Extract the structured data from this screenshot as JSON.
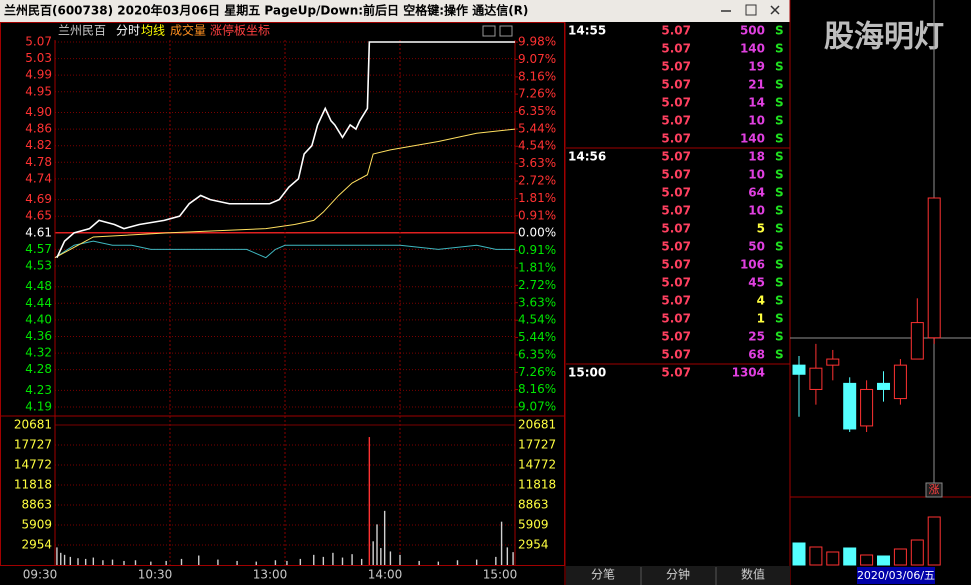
{
  "window": {
    "title": "兰州民百(600738)  2020年03月06日 星期五 PageUp/Down:前后日 空格键:操作 通达信(R)",
    "watermark": "股海明灯"
  },
  "intraday": {
    "header": [
      "兰州民百",
      "分时",
      "均线",
      "成交量",
      "涨停板坐标"
    ],
    "prev_close": 4.61,
    "xlim": [
      0,
      240
    ],
    "xticks": [
      {
        "value": 0,
        "label": "09:30"
      },
      {
        "value": 60,
        "label": "10:30"
      },
      {
        "value": 120,
        "label": "13:00"
      },
      {
        "value": 180,
        "label": "14:00"
      },
      {
        "value": 240,
        "label": "15:00"
      }
    ],
    "ylim": [
      4.19,
      5.07
    ],
    "yticks": [
      5.07,
      5.03,
      4.99,
      4.95,
      {
        "value": 4.9,
        "label": "4.90"
      },
      4.86,
      4.82,
      4.78,
      4.74,
      4.69,
      4.65,
      4.61,
      4.57,
      4.53,
      4.48,
      4.44,
      {
        "value": 4.4,
        "label": "4.40"
      },
      4.36,
      4.32,
      4.28,
      4.23,
      4.19
    ],
    "y2lim": [
      -9.07,
      9.98
    ],
    "y2ticks": [
      {
        "value": 9.98,
        "label": "9.98%"
      },
      {
        "value": 9.07,
        "label": "9.07%"
      },
      {
        "value": 8.16,
        "label": "8.16%"
      },
      {
        "value": 7.26,
        "label": "7.26%"
      },
      {
        "value": 6.35,
        "label": "6.35%"
      },
      {
        "value": 5.44,
        "label": "5.44%"
      },
      {
        "value": 4.54,
        "label": "4.54%"
      },
      {
        "value": 3.63,
        "label": "3.63%"
      },
      {
        "value": 2.72,
        "label": "2.72%"
      },
      {
        "value": 1.81,
        "label": "1.81%"
      },
      {
        "value": 0.91,
        "label": "0.91%"
      },
      {
        "value": 0,
        "label": "0.00%"
      },
      {
        "value": -0.91,
        "label": "0.91%"
      },
      {
        "value": -1.81,
        "label": "1.81%"
      },
      {
        "value": -2.72,
        "label": "2.72%"
      },
      {
        "value": -3.63,
        "label": "3.63%"
      },
      {
        "value": -4.54,
        "label": "4.54%"
      },
      {
        "value": -5.44,
        "label": "5.44%"
      },
      {
        "value": -6.35,
        "label": "6.35%"
      },
      {
        "value": -7.26,
        "label": "7.26%"
      },
      {
        "value": -8.16,
        "label": "8.16%"
      },
      {
        "value": -9.07,
        "label": "9.07%"
      }
    ],
    "price": {
      "x": [
        1,
        5,
        10,
        18,
        23,
        31,
        36,
        44,
        57,
        65,
        70,
        76,
        81,
        91,
        102,
        112,
        117,
        122,
        127,
        130,
        134,
        137,
        141,
        144,
        146,
        150,
        154,
        157,
        159,
        163,
        164,
        240
      ],
      "values": [
        4.55,
        4.59,
        4.61,
        4.62,
        4.64,
        4.63,
        4.62,
        4.63,
        4.64,
        4.65,
        4.68,
        4.7,
        4.69,
        4.68,
        4.68,
        4.68,
        4.69,
        4.72,
        4.74,
        4.8,
        4.82,
        4.87,
        4.91,
        4.88,
        4.87,
        4.84,
        4.87,
        4.86,
        4.88,
        4.91,
        5.07,
        5.07
      ]
    },
    "average": {
      "x": [
        0,
        20,
        60,
        110,
        125,
        135,
        140,
        148,
        155,
        163,
        166,
        175,
        200,
        220,
        240
      ],
      "values": [
        4.55,
        4.6,
        4.61,
        4.62,
        4.63,
        4.64,
        4.66,
        4.7,
        4.73,
        4.75,
        4.8,
        4.81,
        4.83,
        4.85,
        4.86
      ]
    },
    "indicator": {
      "x": [
        0,
        10,
        20,
        30,
        40,
        50,
        70,
        90,
        100,
        105,
        110,
        115,
        120,
        135,
        150,
        165,
        180,
        200,
        220,
        230,
        240
      ],
      "values": [
        4.55,
        4.58,
        4.59,
        4.58,
        4.58,
        4.57,
        4.57,
        4.57,
        4.57,
        4.56,
        4.55,
        4.57,
        4.58,
        4.58,
        4.58,
        4.58,
        4.58,
        4.57,
        4.58,
        4.57,
        4.57
      ]
    },
    "volume": {
      "ylim": [
        0,
        20681
      ],
      "yticks": [
        20681,
        17727,
        14772,
        11818,
        8863,
        5909,
        2954
      ],
      "x": [
        1,
        3,
        5,
        8,
        12,
        16,
        20,
        25,
        30,
        36,
        42,
        50,
        58,
        66,
        75,
        85,
        95,
        105,
        115,
        121,
        128,
        135,
        140,
        145,
        150,
        155,
        160,
        164,
        166,
        168,
        170,
        172,
        175,
        180,
        190,
        200,
        210,
        220,
        230,
        233,
        236,
        239
      ],
      "values": [
        2600,
        1800,
        1500,
        1200,
        1000,
        900,
        1100,
        700,
        800,
        600,
        700,
        500,
        600,
        900,
        1400,
        800,
        600,
        500,
        700,
        600,
        900,
        1500,
        1200,
        1800,
        1100,
        1600,
        900,
        18900,
        3500,
        6000,
        2500,
        8000,
        2000,
        1500,
        600,
        500,
        700,
        800,
        1200,
        6400,
        2600,
        1900
      ]
    }
  },
  "ticks": {
    "rows": [
      {
        "time": "14:55",
        "price": 5.07,
        "volume": 500,
        "side": "S",
        "color": "#e040e0"
      },
      {
        "time": null,
        "price": 5.07,
        "volume": 140,
        "side": "S",
        "color": "#e040e0"
      },
      {
        "time": null,
        "price": 5.07,
        "volume": 19,
        "side": "S",
        "color": "#e040e0"
      },
      {
        "time": null,
        "price": 5.07,
        "volume": 21,
        "side": "S",
        "color": "#e040e0"
      },
      {
        "time": null,
        "price": 5.07,
        "volume": 14,
        "side": "S",
        "color": "#e040e0"
      },
      {
        "time": null,
        "price": 5.07,
        "volume": 10,
        "side": "S",
        "color": "#e040e0"
      },
      {
        "time": null,
        "price": 5.07,
        "volume": 140,
        "side": "S",
        "color": "#e040e0"
      },
      {
        "time": "14:56",
        "price": 5.07,
        "volume": 18,
        "side": "S",
        "color": "#e040e0"
      },
      {
        "time": null,
        "price": 5.07,
        "volume": 10,
        "side": "S",
        "color": "#e040e0"
      },
      {
        "time": null,
        "price": 5.07,
        "volume": 64,
        "side": "S",
        "color": "#e040e0"
      },
      {
        "time": null,
        "price": 5.07,
        "volume": 10,
        "side": "S",
        "color": "#e040e0"
      },
      {
        "time": null,
        "price": 5.07,
        "volume": 5,
        "side": "S",
        "color": "#ffff40"
      },
      {
        "time": null,
        "price": 5.07,
        "volume": 50,
        "side": "S",
        "color": "#e040e0"
      },
      {
        "time": null,
        "price": 5.07,
        "volume": 106,
        "side": "S",
        "color": "#e040e0"
      },
      {
        "time": null,
        "price": 5.07,
        "volume": 45,
        "side": "S",
        "color": "#e040e0"
      },
      {
        "time": null,
        "price": 5.07,
        "volume": 4,
        "side": "S",
        "color": "#ffff40"
      },
      {
        "time": null,
        "price": 5.07,
        "volume": 1,
        "side": "S",
        "color": "#ffff40"
      },
      {
        "time": null,
        "price": 5.07,
        "volume": 25,
        "side": "S",
        "color": "#e040e0"
      },
      {
        "time": null,
        "price": 5.07,
        "volume": 68,
        "side": "S",
        "color": "#e040e0"
      },
      {
        "time": "15:00",
        "price": 5.07,
        "volume": 1304,
        "side": null,
        "color": "#e040e0"
      }
    ],
    "tabs": [
      "分笔",
      "分钟",
      "数值"
    ]
  },
  "daily": {
    "candles": [
      {
        "open": 4.52,
        "close": 4.49,
        "high": 4.55,
        "low": 4.35
      },
      {
        "open": 4.44,
        "close": 4.51,
        "high": 4.59,
        "low": 4.39
      },
      {
        "open": 4.52,
        "close": 4.54,
        "high": 4.57,
        "low": 4.47
      },
      {
        "open": 4.46,
        "close": 4.31,
        "high": 4.48,
        "low": 4.3
      },
      {
        "open": 4.32,
        "close": 4.44,
        "high": 4.47,
        "low": 4.3
      },
      {
        "open": 4.46,
        "close": 4.44,
        "high": 4.5,
        "low": 4.4
      },
      {
        "open": 4.41,
        "close": 4.52,
        "high": 4.54,
        "low": 4.39
      },
      {
        "open": 4.54,
        "close": 4.66,
        "high": 4.74,
        "low": 4.54
      },
      {
        "open": 4.61,
        "close": 5.07,
        "high": 5.07,
        "low": 4.59
      }
    ],
    "volumes": [
      22,
      18,
      13,
      17,
      10,
      9,
      16,
      25,
      48
    ],
    "limit_badge": "涨",
    "date": "2020/03/06/五"
  }
}
